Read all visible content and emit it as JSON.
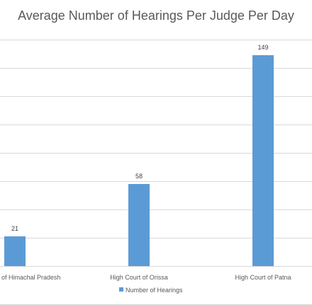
{
  "chart_data": {
    "type": "bar",
    "title": "Average Number of Hearings Per Judge Per Day",
    "categories": [
      "High Court of Himachal Pradesh",
      "High Court of Orissa",
      "High Court of Patna"
    ],
    "series": [
      {
        "name": "Number of Hearings",
        "values": [
          21,
          58,
          149
        ],
        "color": "#5b9bd5"
      }
    ],
    "ylim": [
      0,
      160
    ],
    "grid": true,
    "legend_position": "bottom",
    "show_data_labels": true
  }
}
